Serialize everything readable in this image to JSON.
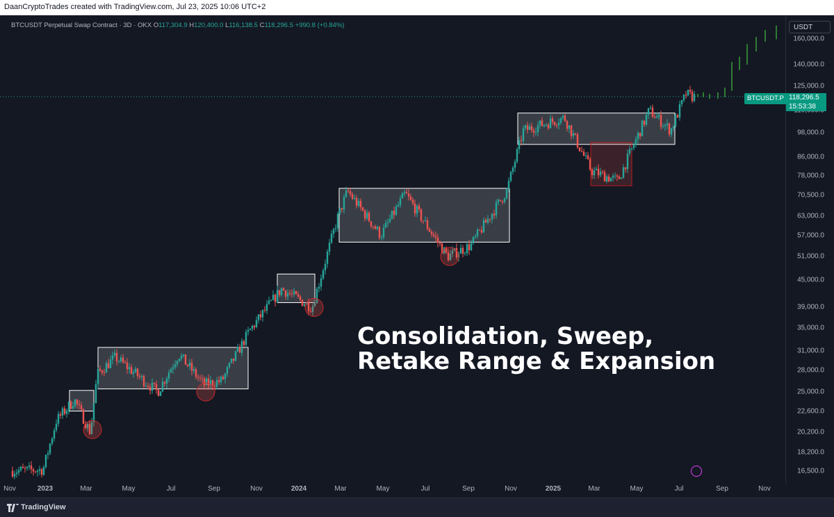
{
  "header": {
    "text": "DaanCryptoTrades created with TradingView.com, Jul 23, 2025 10:06 UTC+2"
  },
  "legend": {
    "symbol": "BTCUSDT Perpetual Swap Contract · 3D · OKX",
    "open_label": "O",
    "open": "117,304.9",
    "high_label": "H",
    "high": "120,400.0",
    "low_label": "L",
    "low": "116,138.5",
    "close_label": "C",
    "close": "118,296.5",
    "change": "+990.8 (+0.84%)"
  },
  "currency": "USDT",
  "price_tag": {
    "ticker": "BTCUSDT.P",
    "price": "118,296.5",
    "countdown": "15:53:38"
  },
  "overlay_text": {
    "line1": "Consolidation, Sweep,",
    "line2": "Retake Range & Expansion"
  },
  "footer": {
    "brand": "TradingView"
  },
  "colors": {
    "bull": "#26a69a",
    "bear": "#ef5350",
    "box": "#ffffff",
    "projection": "#2e7d32",
    "sweep": "#ef5350"
  },
  "chart_data": {
    "type": "candlestick",
    "title": "BTCUSDT Perpetual Swap Contract · 3D · OKX",
    "y_scale": "log",
    "y_ticks": [
      "160,000.0",
      "140,000.0",
      "125,000.0",
      "110,000.0",
      "98,000.0",
      "86,000.0",
      "78,000.0",
      "70,500.0",
      "63,000.0",
      "57,000.0",
      "51,000.0",
      "45,000.0",
      "39,000.0",
      "35,000.0",
      "31,000.0",
      "28,000.0",
      "25,000.0",
      "22,600.0",
      "20,200.0",
      "18,200.0",
      "16,500.0"
    ],
    "x_ticks": [
      "Nov",
      "2023",
      "Mar",
      "May",
      "Jul",
      "Sep",
      "Nov",
      "2024",
      "Mar",
      "May",
      "Jul",
      "Sep",
      "Nov",
      "2025",
      "Mar",
      "May",
      "Jul",
      "Sep",
      "Nov"
    ],
    "series": [
      {
        "name": "BTCUSDT",
        "type": "ohlc_approx",
        "values": [
          {
            "x": "2022-11-15",
            "y": 16500
          },
          {
            "x": "2023-01-01",
            "y": 16600
          },
          {
            "x": "2023-01-20",
            "y": 21500
          },
          {
            "x": "2023-02-15",
            "y": 24000
          },
          {
            "x": "2023-03-10",
            "y": 20200
          },
          {
            "x": "2023-03-20",
            "y": 27500
          },
          {
            "x": "2023-04-15",
            "y": 30000
          },
          {
            "x": "2023-06-15",
            "y": 25000
          },
          {
            "x": "2023-07-15",
            "y": 30500
          },
          {
            "x": "2023-08-20",
            "y": 26000
          },
          {
            "x": "2023-09-15",
            "y": 26500
          },
          {
            "x": "2023-10-25",
            "y": 34500
          },
          {
            "x": "2023-12-10",
            "y": 43000
          },
          {
            "x": "2024-01-23",
            "y": 39000
          },
          {
            "x": "2024-02-28",
            "y": 62000
          },
          {
            "x": "2024-03-14",
            "y": 72000
          },
          {
            "x": "2024-05-01",
            "y": 57000
          },
          {
            "x": "2024-06-05",
            "y": 71000
          },
          {
            "x": "2024-08-05",
            "y": 51000
          },
          {
            "x": "2024-09-07",
            "y": 54000
          },
          {
            "x": "2024-10-29",
            "y": 72000
          },
          {
            "x": "2024-11-22",
            "y": 99000
          },
          {
            "x": "2025-01-20",
            "y": 106000
          },
          {
            "x": "2025-02-28",
            "y": 80000
          },
          {
            "x": "2025-04-07",
            "y": 76000
          },
          {
            "x": "2025-05-22",
            "y": 110000
          },
          {
            "x": "2025-06-22",
            "y": 99000
          },
          {
            "x": "2025-07-14",
            "y": 120000
          },
          {
            "x": "2025-07-23",
            "y": 118296.5
          }
        ]
      }
    ],
    "annotations": {
      "range_boxes": [
        {
          "from": "2023-02-05",
          "to": "2023-03-12",
          "low": 22600,
          "high": 25200
        },
        {
          "from": "2023-03-18",
          "to": "2023-10-20",
          "low": 25400,
          "high": 31600
        },
        {
          "from": "2023-12-01",
          "to": "2024-01-24",
          "low": 40000,
          "high": 46500
        },
        {
          "from": "2024-02-28",
          "to": "2024-10-30",
          "low": 55000,
          "high": 73000
        },
        {
          "from": "2024-11-11",
          "to": "2025-06-25",
          "low": 92000,
          "high": 108500
        }
      ],
      "sweep_box": {
        "from": "2025-02-24",
        "to": "2025-04-24",
        "low": 74000,
        "high": 93000
      },
      "sweep_circles": [
        {
          "x": "2023-03-10",
          "y": 20500
        },
        {
          "x": "2023-08-20",
          "y": 25000
        },
        {
          "x": "2024-01-23",
          "y": 39000
        },
        {
          "x": "2024-08-05",
          "y": 51000
        }
      ],
      "projection_until": "2025-11-20"
    }
  }
}
